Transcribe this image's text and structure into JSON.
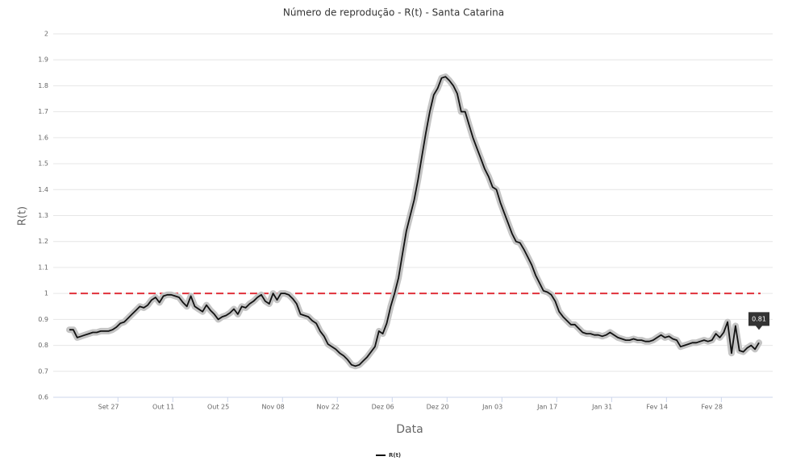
{
  "chart_data": {
    "type": "line",
    "title": "Número de reprodução - R(t) - Santa Catarina",
    "x_label": "Data",
    "y_label": "R(t)",
    "categories": [
      null,
      null,
      null,
      null,
      null,
      null,
      null,
      null,
      null,
      null,
      "Set 27",
      null,
      null,
      null,
      null,
      null,
      null,
      null,
      null,
      null,
      null,
      null,
      null,
      null,
      "Out 11",
      null,
      null,
      null,
      null,
      null,
      null,
      null,
      null,
      null,
      null,
      null,
      null,
      null,
      "Out 25",
      null,
      null,
      null,
      null,
      null,
      null,
      null,
      null,
      null,
      null,
      null,
      null,
      null,
      "Nov 08",
      null,
      null,
      null,
      null,
      null,
      null,
      null,
      null,
      null,
      null,
      null,
      null,
      null,
      "Nov 22",
      null,
      null,
      null,
      null,
      null,
      null,
      null,
      null,
      null,
      null,
      null,
      null,
      null,
      "Dez 06",
      null,
      null,
      null,
      null,
      null,
      null,
      null,
      null,
      null,
      null,
      null,
      null,
      null,
      "Dez 20",
      null,
      null,
      null,
      null,
      null,
      null,
      null,
      null,
      null,
      null,
      null,
      null,
      null,
      "Jan 03",
      null,
      null,
      null,
      null,
      null,
      null,
      null,
      null,
      null,
      null,
      null,
      null,
      null,
      "Jan 17",
      null,
      null,
      null,
      null,
      null,
      null,
      null,
      null,
      null,
      null,
      null,
      null,
      null,
      "Jan 31",
      null,
      null,
      null,
      null,
      null,
      null,
      null,
      null,
      null,
      null,
      null,
      null,
      null,
      "Fev 14",
      null,
      null,
      null,
      null,
      null,
      null,
      null,
      null,
      null,
      null,
      null,
      null,
      null,
      "Fev 28",
      null,
      null,
      null,
      null,
      null,
      null,
      null,
      null,
      null,
      null,
      null,
      null
    ],
    "series": [
      {
        "name": "R(t)",
        "color": "#111111",
        "values": [
          0.86,
          0.86,
          0.83,
          0.835,
          0.84,
          0.845,
          0.85,
          0.85,
          0.855,
          0.855,
          0.855,
          0.86,
          0.87,
          0.885,
          0.89,
          0.905,
          0.92,
          0.935,
          0.95,
          0.945,
          0.955,
          0.975,
          0.985,
          0.965,
          0.99,
          0.995,
          0.995,
          0.99,
          0.985,
          0.965,
          0.95,
          0.99,
          0.95,
          0.94,
          0.93,
          0.955,
          0.935,
          0.92,
          0.9,
          0.91,
          0.915,
          0.925,
          0.94,
          0.92,
          0.95,
          0.945,
          0.96,
          0.97,
          0.985,
          0.995,
          0.97,
          0.96,
          1.0,
          0.975,
          1.0,
          1.0,
          0.995,
          0.98,
          0.96,
          0.92,
          0.915,
          0.91,
          0.895,
          0.885,
          0.855,
          0.835,
          0.805,
          0.795,
          0.785,
          0.77,
          0.76,
          0.745,
          0.725,
          0.72,
          0.725,
          0.74,
          0.755,
          0.775,
          0.795,
          0.855,
          0.845,
          0.885,
          0.95,
          1.0,
          1.06,
          1.15,
          1.24,
          1.3,
          1.36,
          1.44,
          1.53,
          1.62,
          1.7,
          1.765,
          1.79,
          1.83,
          1.835,
          1.82,
          1.8,
          1.77,
          1.7,
          1.7,
          1.65,
          1.6,
          1.56,
          1.52,
          1.48,
          1.45,
          1.41,
          1.4,
          1.35,
          1.31,
          1.27,
          1.23,
          1.2,
          1.195,
          1.17,
          1.14,
          1.11,
          1.07,
          1.04,
          1.01,
          1.005,
          0.995,
          0.97,
          0.93,
          0.91,
          0.895,
          0.88,
          0.88,
          0.865,
          0.85,
          0.845,
          0.845,
          0.84,
          0.84,
          0.835,
          0.84,
          0.85,
          0.84,
          0.83,
          0.825,
          0.82,
          0.82,
          0.825,
          0.82,
          0.82,
          0.815,
          0.815,
          0.82,
          0.83,
          0.84,
          0.83,
          0.835,
          0.825,
          0.82,
          0.795,
          0.8,
          0.805,
          0.81,
          0.81,
          0.815,
          0.82,
          0.815,
          0.82,
          0.845,
          0.83,
          0.85,
          0.89,
          0.77,
          0.875,
          0.78,
          0.775,
          0.79,
          0.8,
          0.785,
          0.81
        ]
      }
    ],
    "reference_line": {
      "value": 1,
      "color": "#e0313b"
    },
    "annotations": [
      {
        "text": "0.81"
      }
    ],
    "ylim": [
      0.6,
      2
    ],
    "yticks": [
      0.6,
      0.7,
      0.8,
      0.9,
      1,
      1.1,
      1.2,
      1.3,
      1.4,
      1.5,
      1.6,
      1.7,
      1.8,
      1.9,
      2
    ],
    "grid": true
  }
}
